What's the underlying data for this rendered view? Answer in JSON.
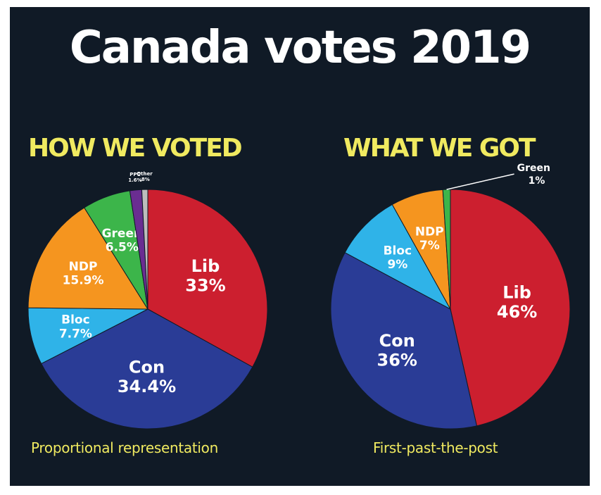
{
  "title": "Canada votes 2019",
  "colors": {
    "background": "#101a26",
    "heading": "#f0ea60",
    "Lib": "#cc1f2f",
    "Con": "#2a3c96",
    "Bloc": "#2fb3e8",
    "NDP": "#f5951f",
    "Green": "#3cb54a",
    "PPC": "#6a2d91",
    "Other": "#bdbdbd"
  },
  "chart_data": [
    {
      "type": "pie",
      "title": "HOW WE VOTED",
      "caption": "Proportional representation",
      "slices": [
        {
          "name": "Lib",
          "value": 33,
          "label": "Lib",
          "value_label": "33%"
        },
        {
          "name": "Con",
          "value": 34.4,
          "label": "Con",
          "value_label": "34.4%"
        },
        {
          "name": "Bloc",
          "value": 7.7,
          "label": "Bloc",
          "value_label": "7.7%"
        },
        {
          "name": "NDP",
          "value": 15.9,
          "label": "NDP",
          "value_label": "15.9%"
        },
        {
          "name": "Green",
          "value": 6.5,
          "label": "Green",
          "value_label": "6.5%"
        },
        {
          "name": "PPC",
          "value": 1.6,
          "label": "PPC",
          "value_label": "1.6%"
        },
        {
          "name": "Other",
          "value": 0.8,
          "label": "Other",
          "value_label": ".8%"
        }
      ]
    },
    {
      "type": "pie",
      "title": "WHAT WE GOT",
      "caption": "First-past-the-post",
      "slices": [
        {
          "name": "Lib",
          "value": 46,
          "label": "Lib",
          "value_label": "46%"
        },
        {
          "name": "Con",
          "value": 36,
          "label": "Con",
          "value_label": "36%"
        },
        {
          "name": "Bloc",
          "value": 9,
          "label": "Bloc",
          "value_label": "9%"
        },
        {
          "name": "NDP",
          "value": 7,
          "label": "NDP",
          "value_label": "7%"
        },
        {
          "name": "Green",
          "value": 1,
          "label": "Green",
          "value_label": "1%"
        }
      ]
    }
  ]
}
